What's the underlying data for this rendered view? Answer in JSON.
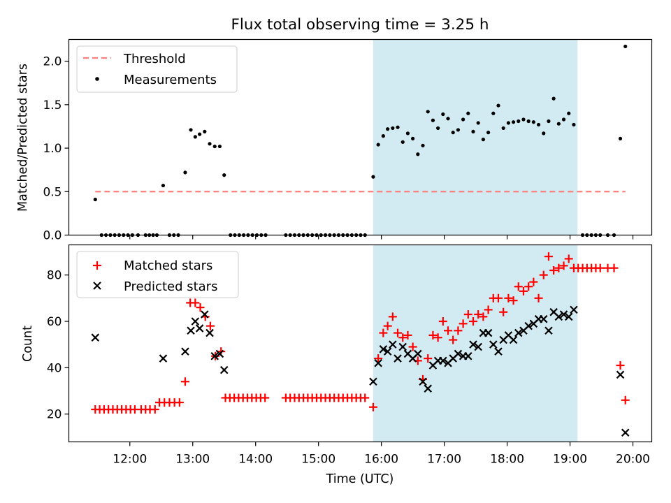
{
  "chart_data": [
    {
      "type": "scatter",
      "title": "Flux total observing time = 3.25 h",
      "xlabel": "",
      "ylabel": "Matched/Predicted stars",
      "ylim": [
        0,
        2.25
      ],
      "yticks": [
        "0.0",
        "0.5",
        "1.0",
        "1.5",
        "2.0"
      ],
      "xlim_hours": [
        11.03,
        20.3
      ],
      "shaded_interval_hours": [
        15.87,
        19.12
      ],
      "shade_color": "#add8e6",
      "legend_position": "upper left",
      "series": [
        {
          "name": "Threshold",
          "kind": "dashed-line",
          "color": "#ff7f7f",
          "x_hours": [
            11.45,
            19.88
          ],
          "y": [
            0.5,
            0.5
          ]
        },
        {
          "name": "Measurements",
          "kind": "dots",
          "color": "#000000",
          "points": [
            [
              11.45,
              0.41
            ],
            [
              11.55,
              0.0
            ],
            [
              11.62,
              0.0
            ],
            [
              11.69,
              0.0
            ],
            [
              11.76,
              0.0
            ],
            [
              11.83,
              0.0
            ],
            [
              11.9,
              0.0
            ],
            [
              11.97,
              0.0
            ],
            [
              12.04,
              0.0
            ],
            [
              12.13,
              0.0
            ],
            [
              12.25,
              0.0
            ],
            [
              12.31,
              0.0
            ],
            [
              12.37,
              0.0
            ],
            [
              12.43,
              0.0
            ],
            [
              12.53,
              0.57
            ],
            [
              12.63,
              0.0
            ],
            [
              12.7,
              0.0
            ],
            [
              12.77,
              0.0
            ],
            [
              12.88,
              0.72
            ],
            [
              12.97,
              1.21
            ],
            [
              13.04,
              1.13
            ],
            [
              13.11,
              1.16
            ],
            [
              13.19,
              1.19
            ],
            [
              13.27,
              1.05
            ],
            [
              13.35,
              1.02
            ],
            [
              13.43,
              1.02
            ],
            [
              13.5,
              0.69
            ],
            [
              13.6,
              0.0
            ],
            [
              13.67,
              0.0
            ],
            [
              13.74,
              0.0
            ],
            [
              13.81,
              0.0
            ],
            [
              13.88,
              0.0
            ],
            [
              13.95,
              0.0
            ],
            [
              14.02,
              0.0
            ],
            [
              14.09,
              0.0
            ],
            [
              14.16,
              0.0
            ],
            [
              14.48,
              0.0
            ],
            [
              14.55,
              0.0
            ],
            [
              14.62,
              0.0
            ],
            [
              14.69,
              0.0
            ],
            [
              14.76,
              0.0
            ],
            [
              14.83,
              0.0
            ],
            [
              14.9,
              0.0
            ],
            [
              14.97,
              0.0
            ],
            [
              15.04,
              0.0
            ],
            [
              15.11,
              0.0
            ],
            [
              15.18,
              0.0
            ],
            [
              15.25,
              0.0
            ],
            [
              15.32,
              0.0
            ],
            [
              15.39,
              0.0
            ],
            [
              15.46,
              0.0
            ],
            [
              15.53,
              0.0
            ],
            [
              15.6,
              0.0
            ],
            [
              15.67,
              0.0
            ],
            [
              15.74,
              0.0
            ],
            [
              15.87,
              0.67
            ],
            [
              15.95,
              1.04
            ],
            [
              16.03,
              1.14
            ],
            [
              16.1,
              1.22
            ],
            [
              16.18,
              1.23
            ],
            [
              16.26,
              1.24
            ],
            [
              16.34,
              1.07
            ],
            [
              16.42,
              1.17
            ],
            [
              16.5,
              1.11
            ],
            [
              16.58,
              0.93
            ],
            [
              16.66,
              1.03
            ],
            [
              16.74,
              1.42
            ],
            [
              16.82,
              1.32
            ],
            [
              16.9,
              1.23
            ],
            [
              16.98,
              1.39
            ],
            [
              17.06,
              1.34
            ],
            [
              17.14,
              1.18
            ],
            [
              17.22,
              1.21
            ],
            [
              17.3,
              1.33
            ],
            [
              17.38,
              1.4
            ],
            [
              17.46,
              1.19
            ],
            [
              17.54,
              1.29
            ],
            [
              17.62,
              1.1
            ],
            [
              17.7,
              1.18
            ],
            [
              17.78,
              1.4
            ],
            [
              17.86,
              1.49
            ],
            [
              17.94,
              1.23
            ],
            [
              18.02,
              1.29
            ],
            [
              18.1,
              1.3
            ],
            [
              18.18,
              1.31
            ],
            [
              18.26,
              1.33
            ],
            [
              18.34,
              1.31
            ],
            [
              18.42,
              1.3
            ],
            [
              18.5,
              1.27
            ],
            [
              18.58,
              1.17
            ],
            [
              18.66,
              1.31
            ],
            [
              18.74,
              1.57
            ],
            [
              18.82,
              1.28
            ],
            [
              18.9,
              1.33
            ],
            [
              18.98,
              1.4
            ],
            [
              19.06,
              1.27
            ],
            [
              19.2,
              0.0
            ],
            [
              19.27,
              0.0
            ],
            [
              19.34,
              0.0
            ],
            [
              19.41,
              0.0
            ],
            [
              19.48,
              0.0
            ],
            [
              19.6,
              0.0
            ],
            [
              19.7,
              0.0
            ],
            [
              19.8,
              1.11
            ],
            [
              19.88,
              2.17
            ]
          ]
        }
      ]
    },
    {
      "type": "scatter",
      "title": "",
      "xlabel": "Time (UTC)",
      "ylabel": "Count",
      "ylim": [
        8,
        93
      ],
      "yticks": [
        "20",
        "40",
        "60",
        "80"
      ],
      "xticks": [
        "12:00",
        "13:00",
        "14:00",
        "15:00",
        "16:00",
        "17:00",
        "18:00",
        "19:00",
        "20:00"
      ],
      "xlim_hours": [
        11.03,
        20.3
      ],
      "shaded_interval_hours": [
        15.87,
        19.12
      ],
      "shade_color": "#add8e6",
      "legend_position": "upper left",
      "series": [
        {
          "name": "Matched stars",
          "kind": "plus",
          "color": "#ff0000",
          "points": [
            [
              11.45,
              22
            ],
            [
              11.52,
              22
            ],
            [
              11.59,
              22
            ],
            [
              11.66,
              22
            ],
            [
              11.73,
              22
            ],
            [
              11.8,
              22
            ],
            [
              11.87,
              22
            ],
            [
              11.94,
              22
            ],
            [
              12.01,
              22
            ],
            [
              12.08,
              22
            ],
            [
              12.18,
              22
            ],
            [
              12.25,
              22
            ],
            [
              12.32,
              22
            ],
            [
              12.4,
              22
            ],
            [
              12.47,
              25
            ],
            [
              12.55,
              25
            ],
            [
              12.63,
              25
            ],
            [
              12.71,
              25
            ],
            [
              12.79,
              25
            ],
            [
              12.88,
              34
            ],
            [
              12.96,
              68
            ],
            [
              13.04,
              68
            ],
            [
              13.12,
              66
            ],
            [
              13.2,
              62
            ],
            [
              13.28,
              58
            ],
            [
              13.36,
              45
            ],
            [
              13.45,
              47
            ],
            [
              13.52,
              27
            ],
            [
              13.59,
              27
            ],
            [
              13.66,
              27
            ],
            [
              13.73,
              27
            ],
            [
              13.8,
              27
            ],
            [
              13.87,
              27
            ],
            [
              13.94,
              27
            ],
            [
              14.01,
              27
            ],
            [
              14.08,
              27
            ],
            [
              14.15,
              27
            ],
            [
              14.48,
              27
            ],
            [
              14.55,
              27
            ],
            [
              14.62,
              27
            ],
            [
              14.69,
              27
            ],
            [
              14.76,
              27
            ],
            [
              14.83,
              27
            ],
            [
              14.9,
              27
            ],
            [
              14.97,
              27
            ],
            [
              15.04,
              27
            ],
            [
              15.11,
              27
            ],
            [
              15.18,
              27
            ],
            [
              15.25,
              27
            ],
            [
              15.32,
              27
            ],
            [
              15.39,
              27
            ],
            [
              15.46,
              27
            ],
            [
              15.53,
              27
            ],
            [
              15.6,
              27
            ],
            [
              15.67,
              27
            ],
            [
              15.74,
              27
            ],
            [
              15.87,
              23
            ],
            [
              15.95,
              44
            ],
            [
              16.03,
              55
            ],
            [
              16.1,
              58
            ],
            [
              16.18,
              62
            ],
            [
              16.26,
              55
            ],
            [
              16.34,
              53
            ],
            [
              16.42,
              54
            ],
            [
              16.5,
              49
            ],
            [
              16.58,
              43
            ],
            [
              16.66,
              35
            ],
            [
              16.74,
              44
            ],
            [
              16.82,
              54
            ],
            [
              16.9,
              53
            ],
            [
              16.98,
              60
            ],
            [
              17.06,
              56
            ],
            [
              17.14,
              52
            ],
            [
              17.22,
              56
            ],
            [
              17.3,
              59
            ],
            [
              17.38,
              63
            ],
            [
              17.46,
              60
            ],
            [
              17.54,
              63
            ],
            [
              17.62,
              62
            ],
            [
              17.7,
              65
            ],
            [
              17.78,
              70
            ],
            [
              17.86,
              70
            ],
            [
              17.94,
              64
            ],
            [
              18.02,
              70
            ],
            [
              18.1,
              69
            ],
            [
              18.18,
              75
            ],
            [
              18.26,
              73
            ],
            [
              18.34,
              75
            ],
            [
              18.42,
              77
            ],
            [
              18.5,
              70
            ],
            [
              18.58,
              80
            ],
            [
              18.66,
              88
            ],
            [
              18.74,
              82
            ],
            [
              18.82,
              83
            ],
            [
              18.9,
              84
            ],
            [
              18.98,
              87
            ],
            [
              19.06,
              83
            ],
            [
              19.13,
              83
            ],
            [
              19.2,
              83
            ],
            [
              19.27,
              83
            ],
            [
              19.34,
              83
            ],
            [
              19.41,
              83
            ],
            [
              19.48,
              83
            ],
            [
              19.6,
              83
            ],
            [
              19.7,
              83
            ],
            [
              19.8,
              41
            ],
            [
              19.88,
              26
            ]
          ]
        },
        {
          "name": "Predicted stars",
          "kind": "cross",
          "color": "#000000",
          "points": [
            [
              11.45,
              53
            ],
            [
              12.53,
              44
            ],
            [
              12.88,
              47
            ],
            [
              12.97,
              56
            ],
            [
              13.04,
              60
            ],
            [
              13.11,
              57
            ],
            [
              13.19,
              63
            ],
            [
              13.27,
              55
            ],
            [
              13.35,
              45
            ],
            [
              13.43,
              46
            ],
            [
              13.5,
              39
            ],
            [
              15.87,
              34
            ],
            [
              15.95,
              42
            ],
            [
              16.03,
              48
            ],
            [
              16.1,
              47
            ],
            [
              16.18,
              50
            ],
            [
              16.26,
              44
            ],
            [
              16.34,
              49
            ],
            [
              16.42,
              46
            ],
            [
              16.5,
              44
            ],
            [
              16.58,
              46
            ],
            [
              16.66,
              34
            ],
            [
              16.74,
              31
            ],
            [
              16.82,
              41
            ],
            [
              16.9,
              43
            ],
            [
              16.98,
              43
            ],
            [
              17.06,
              42
            ],
            [
              17.14,
              44
            ],
            [
              17.22,
              46
            ],
            [
              17.3,
              45
            ],
            [
              17.38,
              45
            ],
            [
              17.46,
              50
            ],
            [
              17.54,
              49
            ],
            [
              17.62,
              55
            ],
            [
              17.7,
              55
            ],
            [
              17.78,
              50
            ],
            [
              17.86,
              47
            ],
            [
              17.94,
              52
            ],
            [
              18.02,
              54
            ],
            [
              18.1,
              52
            ],
            [
              18.18,
              55
            ],
            [
              18.26,
              56
            ],
            [
              18.34,
              58
            ],
            [
              18.42,
              59
            ],
            [
              18.5,
              61
            ],
            [
              18.58,
              61
            ],
            [
              18.66,
              56
            ],
            [
              18.74,
              64
            ],
            [
              18.82,
              62
            ],
            [
              18.9,
              63
            ],
            [
              18.98,
              62
            ],
            [
              19.06,
              65
            ],
            [
              19.8,
              37
            ],
            [
              19.88,
              12
            ]
          ]
        }
      ]
    }
  ]
}
